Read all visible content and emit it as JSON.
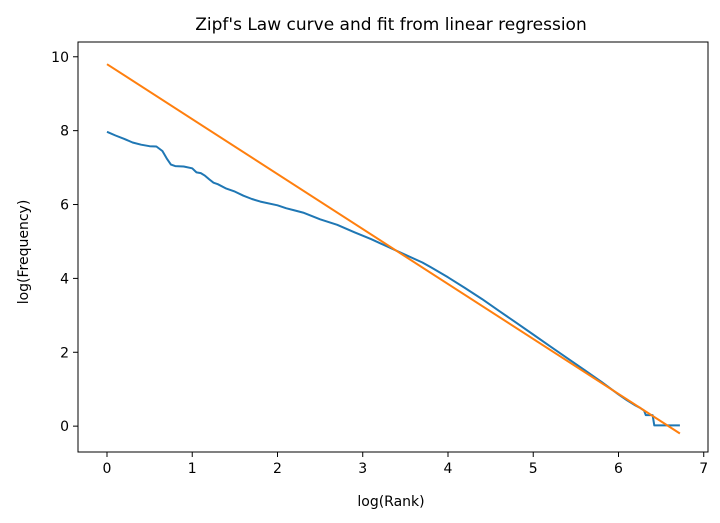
{
  "chart_data": {
    "type": "line",
    "title": "Zipf's Law curve and fit from linear regression",
    "xlabel": "log(Rank)",
    "ylabel": "log(Frequency)",
    "xlim": [
      -0.34,
      7.05
    ],
    "ylim": [
      -0.7,
      10.4
    ],
    "xticks": [
      0,
      1,
      2,
      3,
      4,
      5,
      6,
      7
    ],
    "yticks": [
      0,
      2,
      4,
      6,
      8,
      10
    ],
    "grid": false,
    "legend": "none",
    "series": [
      {
        "color": "#1f77b4",
        "x": [
          0,
          0.1,
          0.2,
          0.3,
          0.4,
          0.5,
          0.58,
          0.65,
          0.7,
          0.75,
          0.8,
          0.9,
          1.0,
          1.05,
          1.1,
          1.15,
          1.2,
          1.25,
          1.3,
          1.4,
          1.5,
          1.6,
          1.7,
          1.8,
          2.0,
          2.1,
          2.2,
          2.3,
          2.5,
          2.7,
          2.9,
          3.1,
          3.3,
          3.5,
          3.7,
          3.8,
          4.0,
          4.2,
          4.4,
          4.6,
          4.8,
          5.0,
          5.2,
          5.4,
          5.6,
          5.8,
          6.0,
          6.1,
          6.2,
          6.25,
          6.3,
          6.32,
          6.35,
          6.38,
          6.4,
          6.42,
          6.45,
          6.5,
          6.55,
          6.6,
          6.65,
          6.72
        ],
        "values": [
          7.97,
          7.87,
          7.78,
          7.68,
          7.62,
          7.58,
          7.57,
          7.45,
          7.25,
          7.08,
          7.04,
          7.03,
          6.98,
          6.87,
          6.85,
          6.78,
          6.68,
          6.59,
          6.55,
          6.43,
          6.35,
          6.24,
          6.15,
          6.08,
          5.98,
          5.9,
          5.84,
          5.78,
          5.6,
          5.45,
          5.25,
          5.06,
          4.85,
          4.64,
          4.43,
          4.3,
          4.03,
          3.74,
          3.44,
          3.12,
          2.8,
          2.48,
          2.16,
          1.84,
          1.52,
          1.2,
          0.86,
          0.7,
          0.56,
          0.5,
          0.42,
          0.3,
          0.3,
          0.3,
          0.3,
          0.02,
          0.02,
          0.02,
          0.02,
          0.02,
          0.02,
          0.02
        ]
      },
      {
        "color": "#ff7f0e",
        "x": [
          0,
          6.72
        ],
        "values": [
          9.8,
          -0.2
        ]
      }
    ]
  }
}
